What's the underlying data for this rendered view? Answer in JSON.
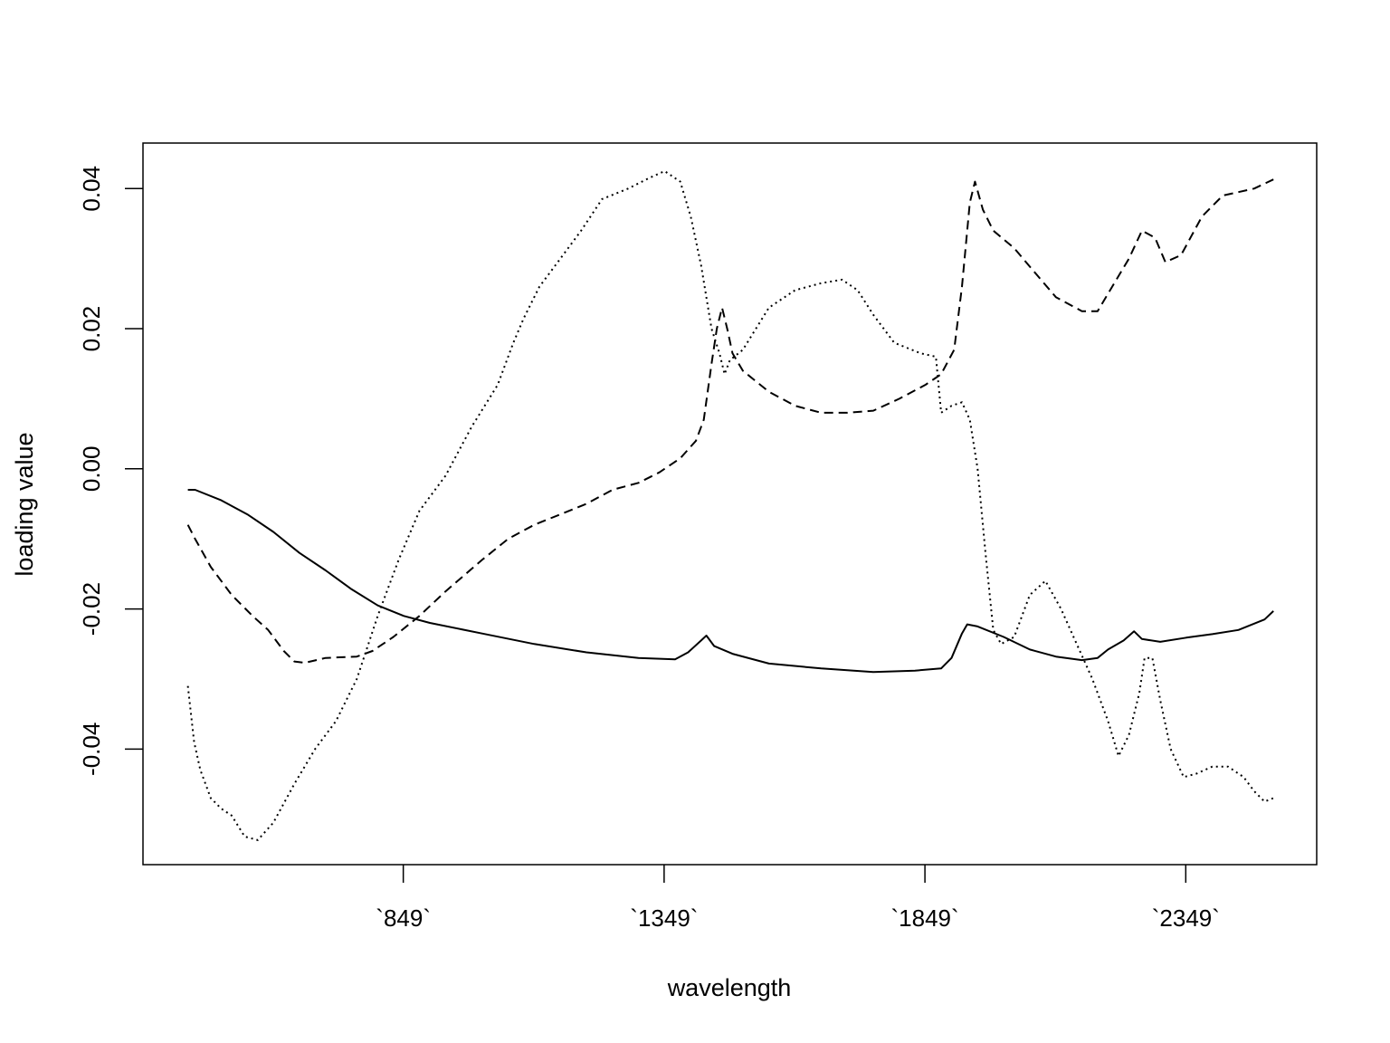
{
  "chart_data": {
    "type": "line",
    "title": "",
    "xlabel": "wavelength",
    "ylabel": "loading value",
    "xlim": [
      350,
      2600
    ],
    "ylim": [
      -0.0565,
      0.0465
    ],
    "grid": false,
    "legend": "none",
    "x_ticks": [
      {
        "value": 849,
        "label": "`849`"
      },
      {
        "value": 1349,
        "label": "`1349`"
      },
      {
        "value": 1849,
        "label": "`1849`"
      },
      {
        "value": 2349,
        "label": "`2349`"
      }
    ],
    "y_ticks": [
      {
        "value": -0.04,
        "label": "-0.04"
      },
      {
        "value": -0.02,
        "label": "-0.02"
      },
      {
        "value": 0.0,
        "label": "0.00"
      },
      {
        "value": 0.02,
        "label": "0.02"
      },
      {
        "value": 0.04,
        "label": "0.04"
      }
    ],
    "series": [
      {
        "line_style": "solid",
        "points": [
          [
            436,
            -0.003
          ],
          [
            450,
            -0.003
          ],
          [
            500,
            -0.0045
          ],
          [
            550,
            -0.0065
          ],
          [
            600,
            -0.009
          ],
          [
            650,
            -0.012
          ],
          [
            700,
            -0.0145
          ],
          [
            750,
            -0.0172
          ],
          [
            800,
            -0.0195
          ],
          [
            850,
            -0.021
          ],
          [
            900,
            -0.022
          ],
          [
            1000,
            -0.0235
          ],
          [
            1100,
            -0.025
          ],
          [
            1200,
            -0.0262
          ],
          [
            1300,
            -0.027
          ],
          [
            1370,
            -0.0272
          ],
          [
            1395,
            -0.0262
          ],
          [
            1420,
            -0.0245
          ],
          [
            1430,
            -0.0238
          ],
          [
            1445,
            -0.0253
          ],
          [
            1480,
            -0.0264
          ],
          [
            1550,
            -0.0278
          ],
          [
            1650,
            -0.0285
          ],
          [
            1750,
            -0.029
          ],
          [
            1830,
            -0.0288
          ],
          [
            1880,
            -0.0285
          ],
          [
            1900,
            -0.027
          ],
          [
            1920,
            -0.0235
          ],
          [
            1930,
            -0.0222
          ],
          [
            1950,
            -0.0225
          ],
          [
            2000,
            -0.024
          ],
          [
            2050,
            -0.0258
          ],
          [
            2100,
            -0.0268
          ],
          [
            2150,
            -0.0273
          ],
          [
            2180,
            -0.027
          ],
          [
            2200,
            -0.0258
          ],
          [
            2230,
            -0.0245
          ],
          [
            2250,
            -0.0232
          ],
          [
            2265,
            -0.0243
          ],
          [
            2300,
            -0.0247
          ],
          [
            2350,
            -0.0241
          ],
          [
            2400,
            -0.0236
          ],
          [
            2450,
            -0.023
          ],
          [
            2500,
            -0.0215
          ],
          [
            2517,
            -0.0203
          ]
        ]
      },
      {
        "line_style": "dashed",
        "points": [
          [
            436,
            -0.008
          ],
          [
            450,
            -0.01
          ],
          [
            480,
            -0.014
          ],
          [
            520,
            -0.018
          ],
          [
            560,
            -0.021
          ],
          [
            590,
            -0.023
          ],
          [
            620,
            -0.026
          ],
          [
            640,
            -0.0275
          ],
          [
            660,
            -0.0277
          ],
          [
            700,
            -0.027
          ],
          [
            760,
            -0.0268
          ],
          [
            790,
            -0.026
          ],
          [
            830,
            -0.024
          ],
          [
            880,
            -0.021
          ],
          [
            930,
            -0.0175
          ],
          [
            1000,
            -0.013
          ],
          [
            1050,
            -0.01
          ],
          [
            1100,
            -0.008
          ],
          [
            1200,
            -0.005
          ],
          [
            1250,
            -0.003
          ],
          [
            1300,
            -0.002
          ],
          [
            1340,
            -0.0005
          ],
          [
            1360,
            0.0005
          ],
          [
            1380,
            0.0015
          ],
          [
            1410,
            0.004
          ],
          [
            1425,
            0.007
          ],
          [
            1440,
            0.015
          ],
          [
            1450,
            0.02
          ],
          [
            1460,
            0.023
          ],
          [
            1470,
            0.02
          ],
          [
            1480,
            0.0165
          ],
          [
            1500,
            0.014
          ],
          [
            1550,
            0.011
          ],
          [
            1600,
            0.009
          ],
          [
            1650,
            0.008
          ],
          [
            1700,
            0.008
          ],
          [
            1750,
            0.0083
          ],
          [
            1800,
            0.01
          ],
          [
            1850,
            0.012
          ],
          [
            1880,
            0.0135
          ],
          [
            1905,
            0.017
          ],
          [
            1920,
            0.026
          ],
          [
            1935,
            0.038
          ],
          [
            1945,
            0.041
          ],
          [
            1960,
            0.037
          ],
          [
            1980,
            0.034
          ],
          [
            2020,
            0.0315
          ],
          [
            2060,
            0.028
          ],
          [
            2100,
            0.0245
          ],
          [
            2150,
            0.0225
          ],
          [
            2180,
            0.0225
          ],
          [
            2200,
            0.025
          ],
          [
            2240,
            0.03
          ],
          [
            2265,
            0.034
          ],
          [
            2290,
            0.033
          ],
          [
            2310,
            0.0295
          ],
          [
            2340,
            0.0305
          ],
          [
            2380,
            0.036
          ],
          [
            2420,
            0.039
          ],
          [
            2480,
            0.04
          ],
          [
            2517,
            0.0413
          ]
        ]
      },
      {
        "line_style": "dotted",
        "points": [
          [
            436,
            -0.031
          ],
          [
            448,
            -0.039
          ],
          [
            460,
            -0.043
          ],
          [
            480,
            -0.047
          ],
          [
            500,
            -0.0485
          ],
          [
            520,
            -0.0495
          ],
          [
            545,
            -0.0525
          ],
          [
            570,
            -0.053
          ],
          [
            600,
            -0.0505
          ],
          [
            640,
            -0.045
          ],
          [
            680,
            -0.04
          ],
          [
            720,
            -0.036
          ],
          [
            760,
            -0.03
          ],
          [
            800,
            -0.021
          ],
          [
            840,
            -0.013
          ],
          [
            880,
            -0.006
          ],
          [
            930,
            -0.001
          ],
          [
            980,
            0.006
          ],
          [
            1030,
            0.012
          ],
          [
            1060,
            0.018
          ],
          [
            1080,
            0.0215
          ],
          [
            1110,
            0.026
          ],
          [
            1150,
            0.03
          ],
          [
            1190,
            0.034
          ],
          [
            1230,
            0.0385
          ],
          [
            1280,
            0.04
          ],
          [
            1320,
            0.0415
          ],
          [
            1350,
            0.0425
          ],
          [
            1380,
            0.041
          ],
          [
            1400,
            0.036
          ],
          [
            1420,
            0.029
          ],
          [
            1440,
            0.02
          ],
          [
            1455,
            0.0165
          ],
          [
            1465,
            0.0135
          ],
          [
            1475,
            0.0155
          ],
          [
            1500,
            0.017
          ],
          [
            1550,
            0.023
          ],
          [
            1600,
            0.0255
          ],
          [
            1650,
            0.0265
          ],
          [
            1690,
            0.027
          ],
          [
            1720,
            0.0255
          ],
          [
            1750,
            0.022
          ],
          [
            1790,
            0.018
          ],
          [
            1840,
            0.0165
          ],
          [
            1870,
            0.016
          ],
          [
            1880,
            0.008
          ],
          [
            1900,
            0.009
          ],
          [
            1920,
            0.0095
          ],
          [
            1935,
            0.007
          ],
          [
            1950,
            0.0
          ],
          [
            1965,
            -0.012
          ],
          [
            1980,
            -0.023
          ],
          [
            1995,
            -0.025
          ],
          [
            2020,
            -0.024
          ],
          [
            2050,
            -0.018
          ],
          [
            2080,
            -0.016
          ],
          [
            2110,
            -0.02
          ],
          [
            2140,
            -0.025
          ],
          [
            2170,
            -0.03
          ],
          [
            2200,
            -0.036
          ],
          [
            2220,
            -0.041
          ],
          [
            2240,
            -0.038
          ],
          [
            2260,
            -0.032
          ],
          [
            2270,
            -0.027
          ],
          [
            2285,
            -0.027
          ],
          [
            2300,
            -0.033
          ],
          [
            2320,
            -0.04
          ],
          [
            2345,
            -0.044
          ],
          [
            2370,
            -0.0435
          ],
          [
            2400,
            -0.0425
          ],
          [
            2430,
            -0.0425
          ],
          [
            2460,
            -0.044
          ],
          [
            2480,
            -0.046
          ],
          [
            2500,
            -0.0475
          ],
          [
            2517,
            -0.047
          ]
        ]
      }
    ]
  }
}
